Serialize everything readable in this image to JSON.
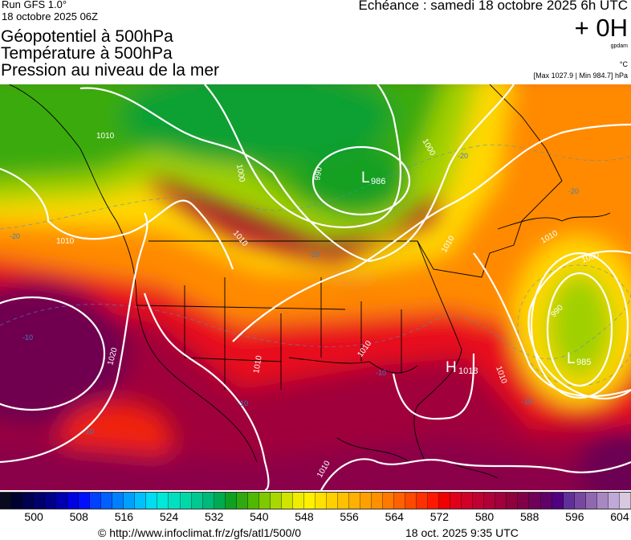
{
  "header": {
    "run": "Run GFS 1.0°",
    "run_date": "18 octobre 2025 06Z",
    "titles": [
      "Géopotentiel à 500hPa",
      "Température à 500hPa",
      "Pression au niveau de la mer"
    ],
    "echeance": "Echéance : samedi 18 octobre 2025 6h UTC",
    "offset": "+ 0H",
    "unit_geo": "gpdam",
    "unit_temp": "°C",
    "pressure_range": "[Max 1027.9 | Min 984.7] hPa"
  },
  "map": {
    "lows": [
      {
        "letter": "L",
        "value": "986"
      },
      {
        "letter": "L",
        "value": "985"
      }
    ],
    "highs": [
      {
        "letter": "H",
        "value": "1018"
      }
    ],
    "isobar_labels": [
      "1010",
      "1010",
      "1000",
      "990",
      "1000",
      "1010",
      "1010",
      "1020",
      "1010",
      "1010",
      "990",
      "1010",
      "1000",
      "1010",
      "1010"
    ],
    "temp_labels": [
      "-20",
      "-20",
      "-20",
      "-20",
      "-10",
      "-10",
      "-10",
      "-10",
      "-10"
    ],
    "field_colors": {
      "base": "#a0003c",
      "purple": "#6c0052",
      "red": "#ee1010",
      "orange": "#ff8c00",
      "yellow": "#ffe000",
      "lime": "#a8d400",
      "green": "#30a818",
      "green_dark": "#12a020",
      "isobar": "#ffffff",
      "temp_contour": "#4a90c8"
    }
  },
  "colorbar": {
    "colors": [
      "#0a0a1e",
      "#000030",
      "#000050",
      "#00006a",
      "#000088",
      "#0000b0",
      "#0000e0",
      "#0010ff",
      "#0040ff",
      "#0060ff",
      "#0080ff",
      "#00a0ff",
      "#00c0ff",
      "#00dcf0",
      "#00e8d8",
      "#00e0c0",
      "#00d8a8",
      "#00c890",
      "#00b878",
      "#00aa50",
      "#10a020",
      "#30a810",
      "#50b800",
      "#80c800",
      "#a8d800",
      "#d0e400",
      "#f0ec00",
      "#fff000",
      "#ffe000",
      "#ffd000",
      "#ffc000",
      "#ffb000",
      "#ffa000",
      "#ff9000",
      "#ff7800",
      "#ff6000",
      "#ff4800",
      "#ff3000",
      "#ff1800",
      "#f00000",
      "#e0001c",
      "#d00028",
      "#c00030",
      "#b00038",
      "#a0003c",
      "#90003e",
      "#800048",
      "#700058",
      "#600068",
      "#500080",
      "#603098",
      "#7848a0",
      "#9068b0",
      "#a888c0",
      "#c0a8d8",
      "#d8c8e0"
    ],
    "ticks": [
      "500",
      "508",
      "516",
      "524",
      "532",
      "540",
      "548",
      "556",
      "564",
      "572",
      "580",
      "588",
      "596",
      "604"
    ]
  },
  "footer": {
    "source": "© http://www.infoclimat.fr/z/gfs/atl1/500/0",
    "generated": "18 oct. 2025  9:35 UTC"
  }
}
